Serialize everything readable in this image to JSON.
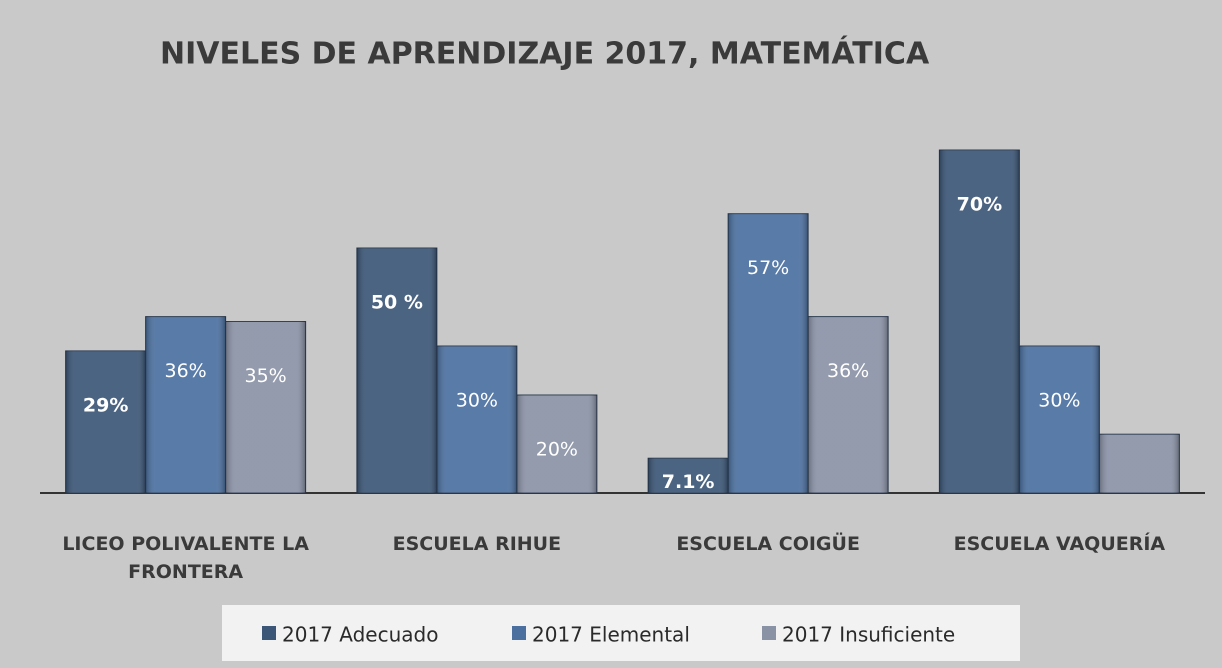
{
  "chart_data": {
    "type": "bar",
    "title": "NIVELES DE APRENDIZAJE 2017, MATEMÁTICA",
    "categories": [
      "LICEO POLIVALENTE LA FRONTERA",
      "ESCUELA RIHUE",
      "ESCUELA COIGÜE",
      "ESCUELA VAQUERÍA"
    ],
    "series": [
      {
        "name": "2017 Adecuado",
        "color": "#3b5677",
        "values": [
          29,
          50,
          7.1,
          70
        ],
        "value_labels": [
          "29%",
          "50 %",
          "7.1%",
          "70%"
        ]
      },
      {
        "name": "2017 Elemental",
        "color": "#4b70a0",
        "values": [
          36,
          30,
          57,
          30
        ],
        "value_labels": [
          "36%",
          "30%",
          "57%",
          "30%"
        ]
      },
      {
        "name": "2017 Insuficiente",
        "color": "#8a92a6",
        "values": [
          35,
          20,
          36,
          12
        ],
        "value_labels": [
          "35%",
          "20%",
          "36%",
          null
        ]
      }
    ],
    "legend": "bottom"
  }
}
